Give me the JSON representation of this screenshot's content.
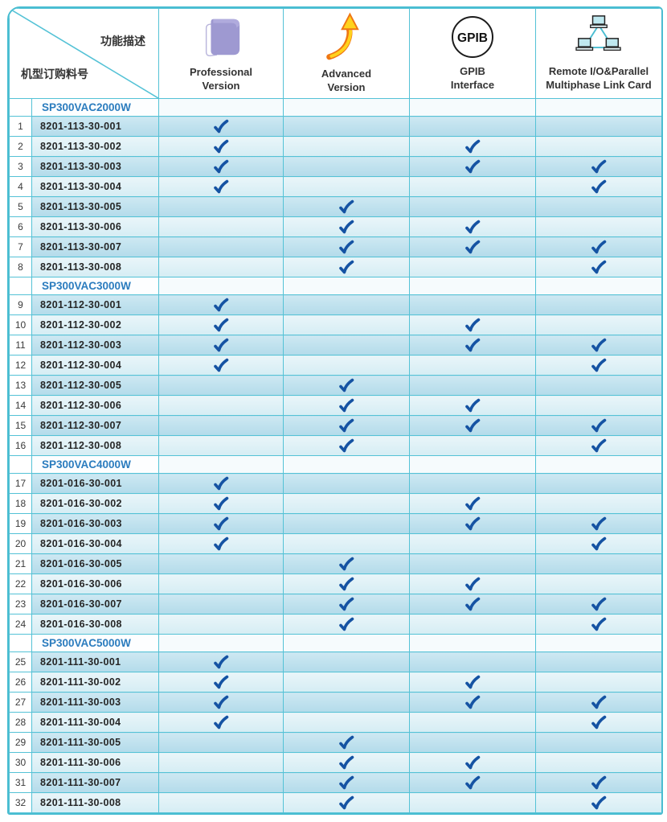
{
  "header": {
    "corner": {
      "top_label": "功能描述",
      "bottom_label": "机型订购料号"
    },
    "columns": [
      {
        "icon": "book-icon",
        "line1": "Professional",
        "line2": "Version"
      },
      {
        "icon": "up-arrow-icon",
        "line1": "Advanced",
        "line2": "Version"
      },
      {
        "icon": "gpib-icon",
        "icon_text": "GPIB",
        "line1": "GPIB",
        "line2": "Interface"
      },
      {
        "icon": "network-icon",
        "line1": "Remote I/O&Parallel",
        "line2": "Multiphase Link Card"
      }
    ]
  },
  "check_icon": {
    "glyph": "✓",
    "color": "#1553a3"
  },
  "colors": {
    "grid_border": "#54c2d6",
    "outer_border": "#49bdd1",
    "check": "#1553a3",
    "model_text": "#2b7cbe",
    "row_dark": "#b9dde9",
    "row_light": "#ddeff5",
    "book_purple": "#9e99d1",
    "arrow_yellow": "#ffd21c",
    "arrow_orange": "#ef7613"
  },
  "sections": [
    {
      "model": "SP300VAC2000W",
      "rows": [
        {
          "no": "1",
          "part": "8201-113-30-001",
          "features": [
            1,
            0,
            0,
            0
          ]
        },
        {
          "no": "2",
          "part": "8201-113-30-002",
          "features": [
            1,
            0,
            1,
            0
          ]
        },
        {
          "no": "3",
          "part": "8201-113-30-003",
          "features": [
            1,
            0,
            1,
            1
          ]
        },
        {
          "no": "4",
          "part": "8201-113-30-004",
          "features": [
            1,
            0,
            0,
            1
          ]
        },
        {
          "no": "5",
          "part": "8201-113-30-005",
          "features": [
            0,
            1,
            0,
            0
          ]
        },
        {
          "no": "6",
          "part": "8201-113-30-006",
          "features": [
            0,
            1,
            1,
            0
          ]
        },
        {
          "no": "7",
          "part": "8201-113-30-007",
          "features": [
            0,
            1,
            1,
            1
          ]
        },
        {
          "no": "8",
          "part": "8201-113-30-008",
          "features": [
            0,
            1,
            0,
            1
          ]
        }
      ]
    },
    {
      "model": "SP300VAC3000W",
      "rows": [
        {
          "no": "9",
          "part": "8201-112-30-001",
          "features": [
            1,
            0,
            0,
            0
          ]
        },
        {
          "no": "10",
          "part": "8201-112-30-002",
          "features": [
            1,
            0,
            1,
            0
          ]
        },
        {
          "no": "11",
          "part": "8201-112-30-003",
          "features": [
            1,
            0,
            1,
            1
          ]
        },
        {
          "no": "12",
          "part": "8201-112-30-004",
          "features": [
            1,
            0,
            0,
            1
          ]
        },
        {
          "no": "13",
          "part": "8201-112-30-005",
          "features": [
            0,
            1,
            0,
            0
          ]
        },
        {
          "no": "14",
          "part": "8201-112-30-006",
          "features": [
            0,
            1,
            1,
            0
          ]
        },
        {
          "no": "15",
          "part": "8201-112-30-007",
          "features": [
            0,
            1,
            1,
            1
          ]
        },
        {
          "no": "16",
          "part": "8201-112-30-008",
          "features": [
            0,
            1,
            0,
            1
          ]
        }
      ]
    },
    {
      "model": "SP300VAC4000W",
      "rows": [
        {
          "no": "17",
          "part": "8201-016-30-001",
          "features": [
            1,
            0,
            0,
            0
          ]
        },
        {
          "no": "18",
          "part": "8201-016-30-002",
          "features": [
            1,
            0,
            1,
            0
          ]
        },
        {
          "no": "19",
          "part": "8201-016-30-003",
          "features": [
            1,
            0,
            1,
            1
          ]
        },
        {
          "no": "20",
          "part": "8201-016-30-004",
          "features": [
            1,
            0,
            0,
            1
          ]
        },
        {
          "no": "21",
          "part": "8201-016-30-005",
          "features": [
            0,
            1,
            0,
            0
          ]
        },
        {
          "no": "22",
          "part": "8201-016-30-006",
          "features": [
            0,
            1,
            1,
            0
          ]
        },
        {
          "no": "23",
          "part": "8201-016-30-007",
          "features": [
            0,
            1,
            1,
            1
          ]
        },
        {
          "no": "24",
          "part": "8201-016-30-008",
          "features": [
            0,
            1,
            0,
            1
          ]
        }
      ]
    },
    {
      "model": "SP300VAC5000W",
      "rows": [
        {
          "no": "25",
          "part": "8201-111-30-001",
          "features": [
            1,
            0,
            0,
            0
          ]
        },
        {
          "no": "26",
          "part": "8201-111-30-002",
          "features": [
            1,
            0,
            1,
            0
          ]
        },
        {
          "no": "27",
          "part": "8201-111-30-003",
          "features": [
            1,
            0,
            1,
            1
          ]
        },
        {
          "no": "28",
          "part": "8201-111-30-004",
          "features": [
            1,
            0,
            0,
            1
          ]
        },
        {
          "no": "29",
          "part": "8201-111-30-005",
          "features": [
            0,
            1,
            0,
            0
          ]
        },
        {
          "no": "30",
          "part": "8201-111-30-006",
          "features": [
            0,
            1,
            1,
            0
          ]
        },
        {
          "no": "31",
          "part": "8201-111-30-007",
          "features": [
            0,
            1,
            1,
            1
          ]
        },
        {
          "no": "32",
          "part": "8201-111-30-008",
          "features": [
            0,
            1,
            0,
            1
          ]
        }
      ]
    }
  ]
}
